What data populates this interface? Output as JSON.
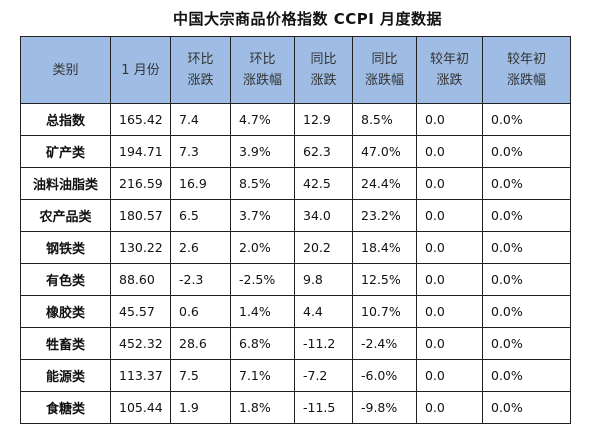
{
  "title": "中国大宗商品价格指数 CCPI 月度数据",
  "columns": [
    {
      "line1": "类别",
      "line2": ""
    },
    {
      "line1": "1 月份",
      "line2": ""
    },
    {
      "line1": "环比",
      "line2": "涨跌"
    },
    {
      "line1": "环比",
      "line2": "涨跌幅"
    },
    {
      "line1": "同比",
      "line2": "涨跌"
    },
    {
      "line1": "同比",
      "line2": "涨跌幅"
    },
    {
      "line1": "较年初",
      "line2": "涨跌"
    },
    {
      "line1": "较年初",
      "line2": "涨跌幅"
    }
  ],
  "header_color": "#9fbde4",
  "rows": [
    [
      "总指数",
      "165.42",
      "7.4",
      "4.7%",
      "12.9",
      "8.5%",
      "0.0",
      "0.0%"
    ],
    [
      "矿产类",
      "194.71",
      "7.3",
      "3.9%",
      "62.3",
      "47.0%",
      "0.0",
      "0.0%"
    ],
    [
      "油料油脂类",
      "216.59",
      "16.9",
      "8.5%",
      "42.5",
      "24.4%",
      "0.0",
      "0.0%"
    ],
    [
      "农产品类",
      "180.57",
      "6.5",
      "3.7%",
      "34.0",
      "23.2%",
      "0.0",
      "0.0%"
    ],
    [
      "钢铁类",
      "130.22",
      "2.6",
      "2.0%",
      "20.2",
      "18.4%",
      "0.0",
      "0.0%"
    ],
    [
      "有色类",
      "88.60",
      "-2.3",
      "-2.5%",
      "9.8",
      "12.5%",
      "0.0",
      "0.0%"
    ],
    [
      "橡胶类",
      "45.57",
      "0.6",
      "1.4%",
      "4.4",
      "10.7%",
      "0.0",
      "0.0%"
    ],
    [
      "牲畜类",
      "452.32",
      "28.6",
      "6.8%",
      "-11.2",
      "-2.4%",
      "0.0",
      "0.0%"
    ],
    [
      "能源类",
      "113.37",
      "7.5",
      "7.1%",
      "-7.2",
      "-6.0%",
      "0.0",
      "0.0%"
    ],
    [
      "食糖类",
      "105.44",
      "1.9",
      "1.8%",
      "-11.5",
      "-9.8%",
      "0.0",
      "0.0%"
    ]
  ]
}
